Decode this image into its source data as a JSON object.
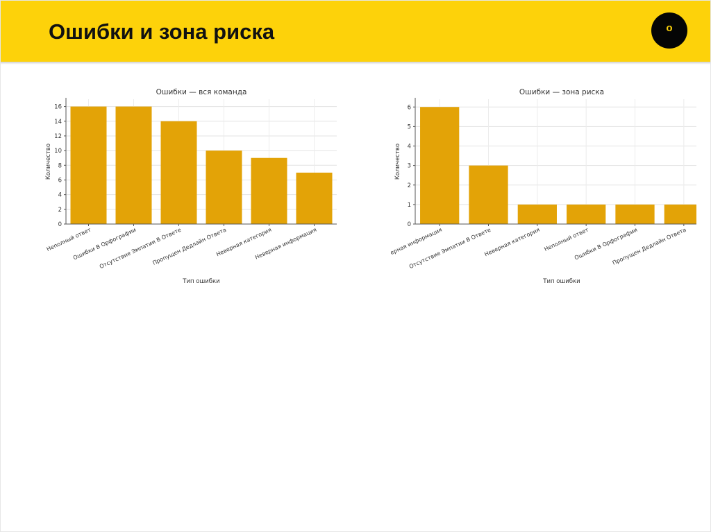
{
  "slide": {
    "title": "Ошибки и зона риска",
    "badge": "o"
  },
  "colors": {
    "header": "#fdd20a",
    "bar": "#e3a307",
    "badge": "#050505"
  },
  "chart_data": [
    {
      "type": "bar",
      "title": "Ошибки — вся команда",
      "xlabel": "Тип ошибки",
      "ylabel": "Количество",
      "categories": [
        "Неполный ответ",
        "Ошибки В Орфографии",
        "Отсутствие Эмпатии В Ответе",
        "Пропущен Дедлайн Ответа",
        "Неверная категория",
        "Неверная информация"
      ],
      "values": [
        16,
        16,
        14,
        10,
        9,
        7
      ],
      "ylim": [
        0,
        17
      ],
      "yticks": [
        0,
        2,
        4,
        6,
        8,
        10,
        12,
        14,
        16
      ],
      "grid": true
    },
    {
      "type": "bar",
      "title": "Ошибки — зона риска",
      "xlabel": "Тип ошибки",
      "ylabel": "Количество",
      "categories": [
        "Неверная информация",
        "Отсутствие Эмпатии В Ответе",
        "Неверная категория",
        "Неполный ответ",
        "Ошибки В Орфографии",
        "Пропущен Дедлайн Ответа"
      ],
      "values": [
        6,
        3,
        1,
        1,
        1,
        1
      ],
      "ylim": [
        0,
        6.4
      ],
      "yticks": [
        0,
        1,
        2,
        3,
        4,
        5,
        6
      ],
      "grid": true
    }
  ]
}
